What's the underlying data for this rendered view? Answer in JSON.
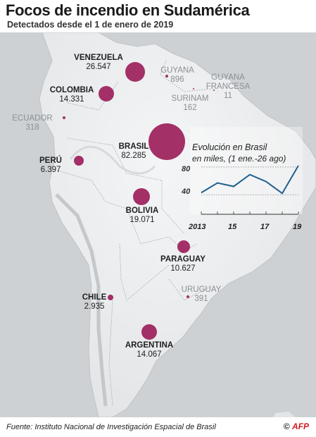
{
  "title": "Focos de incendio en Sudamérica",
  "subtitle": "Detectados desde el 1 de enero de 2019",
  "countries": [
    {
      "name": "VENEZUELA",
      "value": "26.547",
      "fires": 26547,
      "highlight": true
    },
    {
      "name": "GUYANA",
      "value": "896",
      "fires": 896,
      "highlight": false
    },
    {
      "name": "GUYANA FRANCESA",
      "value": "11",
      "fires": 11,
      "highlight": false
    },
    {
      "name": "SURINAM",
      "value": "162",
      "fires": 162,
      "highlight": false
    },
    {
      "name": "COLOMBIA",
      "value": "14.331",
      "fires": 14331,
      "highlight": true
    },
    {
      "name": "ECUADOR",
      "value": "318",
      "fires": 318,
      "highlight": false
    },
    {
      "name": "BRASIL",
      "value": "82.285",
      "fires": 82285,
      "highlight": true
    },
    {
      "name": "PERÚ",
      "value": "6.397",
      "fires": 6397,
      "highlight": true
    },
    {
      "name": "BOLIVIA",
      "value": "19.071",
      "fires": 19071,
      "highlight": true
    },
    {
      "name": "PARAGUAY",
      "value": "10.627",
      "fires": 10627,
      "highlight": true
    },
    {
      "name": "URUGUAY",
      "value": "391",
      "fires": 391,
      "highlight": false
    },
    {
      "name": "CHILE",
      "value": "2.935",
      "fires": 2935,
      "highlight": true
    },
    {
      "name": "ARGENTINA",
      "value": "14.067",
      "fires": 14067,
      "highlight": true
    }
  ],
  "bubble_color": "#9a1b56",
  "inset": {
    "title": "Evolución en Brasil",
    "subtitle": "en miles, (1 ene.-26 ago)",
    "line_color": "#1f5f8f",
    "chart_data": {
      "type": "line",
      "x": [
        2013,
        2014,
        2015,
        2016,
        2017,
        2018,
        2019
      ],
      "values": [
        43,
        57,
        52,
        69,
        59,
        42,
        82
      ],
      "x_tick_labels": [
        "2013",
        "15",
        "17",
        "19"
      ],
      "y_tick_labels": [
        "80",
        "40"
      ],
      "ylim": [
        20,
        85
      ],
      "grid": true
    }
  },
  "source": "Fuente: Instituto Nacional de Investigación Espacial de Brasil",
  "credit_symbol": "©",
  "credit": "AFP"
}
